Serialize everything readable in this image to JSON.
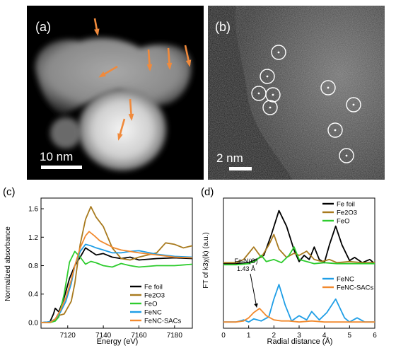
{
  "panels": {
    "a": {
      "label": "(a)",
      "scale_bar": "10 nm"
    },
    "b": {
      "label": "(b)",
      "scale_bar": "2 nm"
    },
    "c": {
      "label": "(c)"
    },
    "d": {
      "label": "(d)"
    }
  },
  "colors": {
    "arrow": "#f08a3c",
    "circle": "#ffffff",
    "fe_foil": "#000000",
    "fe2o3": "#a87a1e",
    "feo": "#2ecc2e",
    "fenc": "#1f9ee6",
    "fenc_sacs": "#f28a2e"
  },
  "chart_data": [
    {
      "type": "line",
      "panel": "(c)",
      "xlabel": "Energy (eV)",
      "ylabel": "Normalized absorbance",
      "xlim": [
        7105,
        7190
      ],
      "ylim": [
        -0.08,
        1.75
      ],
      "xticks": [
        7120,
        7140,
        7160,
        7180
      ],
      "yticks": [
        "0.0",
        "0.4",
        "0.8",
        "1.2",
        "1.6"
      ],
      "legend_position": "lower-right",
      "series": [
        {
          "name": "Fe foil",
          "color_key": "fe_foil",
          "x": [
            7105,
            7110,
            7112,
            7113,
            7115,
            7118,
            7121,
            7124,
            7127,
            7130,
            7133,
            7136,
            7140,
            7145,
            7150,
            7155,
            7160,
            7170,
            7180,
            7190
          ],
          "y": [
            0.0,
            0.01,
            0.12,
            0.2,
            0.15,
            0.35,
            0.62,
            0.8,
            0.92,
            1.05,
            1.0,
            0.95,
            0.97,
            0.92,
            0.9,
            0.92,
            0.88,
            0.9,
            0.91,
            0.9
          ]
        },
        {
          "name": "Fe2O3",
          "color_key": "fe2o3",
          "x": [
            7105,
            7110,
            7113,
            7115,
            7118,
            7122,
            7124,
            7127,
            7130,
            7133,
            7136,
            7140,
            7145,
            7150,
            7155,
            7160,
            7165,
            7170,
            7175,
            7180,
            7185,
            7190
          ],
          "y": [
            0.0,
            0.0,
            0.04,
            0.1,
            0.12,
            0.3,
            0.55,
            1.1,
            1.45,
            1.63,
            1.48,
            1.35,
            1.05,
            0.9,
            0.88,
            0.92,
            0.95,
            0.98,
            1.12,
            1.1,
            1.05,
            1.08
          ]
        },
        {
          "name": "FeO",
          "color_key": "feo",
          "x": [
            7105,
            7110,
            7113,
            7115,
            7118,
            7121,
            7124,
            7127,
            7130,
            7133,
            7136,
            7140,
            7145,
            7150,
            7155,
            7160,
            7170,
            7180,
            7190
          ],
          "y": [
            0.0,
            0.0,
            0.02,
            0.08,
            0.4,
            0.85,
            1.0,
            0.92,
            0.82,
            0.86,
            0.84,
            0.8,
            0.78,
            0.83,
            0.8,
            0.78,
            0.8,
            0.8,
            0.82
          ]
        },
        {
          "name": "FeNC",
          "color_key": "fenc",
          "x": [
            7105,
            7110,
            7113,
            7116,
            7119,
            7122,
            7124,
            7127,
            7130,
            7133,
            7136,
            7140,
            7145,
            7150,
            7155,
            7160,
            7170,
            7180,
            7190
          ],
          "y": [
            0.0,
            0.01,
            0.05,
            0.15,
            0.3,
            0.55,
            0.8,
            1.0,
            1.1,
            1.08,
            1.05,
            1.02,
            0.98,
            0.98,
            1.0,
            1.01,
            0.96,
            0.93,
            0.92
          ]
        },
        {
          "name": "FeNC-SACs",
          "color_key": "fenc_sacs",
          "x": [
            7105,
            7110,
            7113,
            7116,
            7119,
            7122,
            7124,
            7127,
            7130,
            7132,
            7135,
            7138,
            7142,
            7146,
            7150,
            7155,
            7160,
            7170,
            7180,
            7190
          ],
          "y": [
            0.0,
            0.0,
            0.05,
            0.18,
            0.35,
            0.6,
            0.8,
            1.05,
            1.22,
            1.28,
            1.22,
            1.15,
            1.1,
            1.05,
            1.02,
            1.0,
            0.98,
            0.95,
            0.92,
            0.91
          ]
        }
      ]
    },
    {
      "type": "line",
      "panel": "(d)",
      "xlabel": "Radial distance (Å)",
      "ylabel": "FT of k3χ(k) (a.u.)",
      "xlim": [
        0,
        6
      ],
      "ylim": [
        0,
        1.25
      ],
      "xticks": [
        0,
        1,
        2,
        3,
        4,
        5,
        6
      ],
      "annotation": {
        "line1": "Fe-N(O)",
        "line2": "1.43 Å",
        "x": 1.43
      },
      "legends": [
        {
          "position": "top-right",
          "items": [
            "Fe foil",
            "Fe2O3",
            "FeO"
          ]
        },
        {
          "position": "lower-right",
          "items": [
            "FeNC",
            "FeNC-SACs"
          ]
        }
      ],
      "series": [
        {
          "name": "Fe foil",
          "color_key": "fe_foil",
          "x": [
            0,
            0.5,
            1.0,
            1.3,
            1.6,
            1.9,
            2.2,
            2.5,
            2.8,
            3.0,
            3.2,
            3.4,
            3.6,
            3.8,
            4.0,
            4.2,
            4.45,
            4.7,
            5.0,
            5.2,
            5.5,
            5.8,
            6.0
          ],
          "y": [
            0.62,
            0.62,
            0.63,
            0.66,
            0.7,
            0.9,
            1.13,
            0.98,
            0.75,
            0.64,
            0.7,
            0.66,
            0.78,
            0.66,
            0.63,
            0.8,
            0.98,
            0.8,
            0.65,
            0.68,
            0.63,
            0.66,
            0.62
          ]
        },
        {
          "name": "Fe2O3",
          "color_key": "fe2o3",
          "x": [
            0,
            0.5,
            0.8,
            1.0,
            1.2,
            1.5,
            1.8,
            2.0,
            2.2,
            2.5,
            2.8,
            3.0,
            3.3,
            3.6,
            3.9,
            4.2,
            4.5,
            5.0,
            5.5,
            6.0
          ],
          "y": [
            0.63,
            0.63,
            0.66,
            0.72,
            0.78,
            0.68,
            0.8,
            0.9,
            0.76,
            0.68,
            0.72,
            0.7,
            0.74,
            0.66,
            0.64,
            0.66,
            0.63,
            0.64,
            0.63,
            0.63
          ]
        },
        {
          "name": "FeO",
          "color_key": "feo",
          "x": [
            0,
            0.5,
            1.0,
            1.3,
            1.5,
            1.7,
            2.0,
            2.3,
            2.6,
            2.8,
            3.0,
            3.3,
            3.6,
            4.0,
            4.5,
            5.0,
            5.5,
            6.0
          ],
          "y": [
            0.61,
            0.61,
            0.62,
            0.65,
            0.7,
            0.64,
            0.66,
            0.63,
            0.7,
            0.78,
            0.66,
            0.64,
            0.62,
            0.63,
            0.62,
            0.62,
            0.62,
            0.62
          ]
        },
        {
          "name": "FeNC",
          "color_key": "fenc",
          "x": [
            0,
            0.5,
            0.8,
            1.0,
            1.2,
            1.5,
            1.8,
            2.0,
            2.2,
            2.45,
            2.7,
            3.0,
            3.3,
            3.5,
            3.8,
            4.1,
            4.45,
            4.8,
            5.0,
            5.3,
            5.6,
            6.0
          ],
          "y": [
            0.06,
            0.06,
            0.08,
            0.06,
            0.09,
            0.07,
            0.11,
            0.28,
            0.42,
            0.22,
            0.07,
            0.12,
            0.08,
            0.16,
            0.08,
            0.15,
            0.28,
            0.1,
            0.06,
            0.1,
            0.06,
            0.06
          ]
        },
        {
          "name": "FeNC-SACs",
          "color_key": "fenc_sacs",
          "x": [
            0,
            0.5,
            0.8,
            1.0,
            1.2,
            1.43,
            1.7,
            2.0,
            2.3,
            2.6,
            3.0,
            3.5,
            4.0,
            4.5,
            5.0,
            5.5,
            6.0
          ],
          "y": [
            0.06,
            0.06,
            0.07,
            0.1,
            0.15,
            0.19,
            0.12,
            0.08,
            0.07,
            0.07,
            0.06,
            0.07,
            0.06,
            0.06,
            0.06,
            0.06,
            0.06
          ]
        }
      ]
    }
  ]
}
